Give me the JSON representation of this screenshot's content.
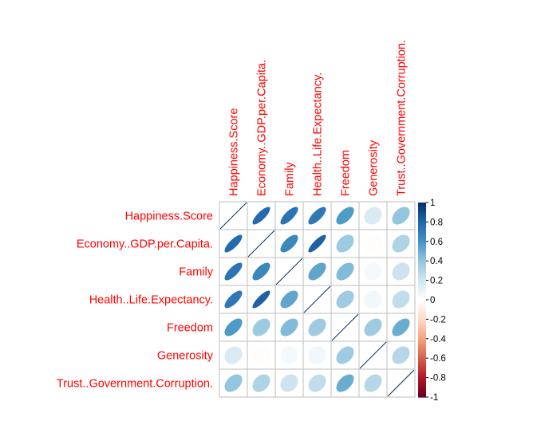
{
  "chart_data": {
    "type": "heatmap",
    "variables": [
      "Happiness.Score",
      "Economy..GDP.per.Capita.",
      "Family",
      "Health..Life.Expectancy.",
      "Freedom",
      "Generosity",
      "Trust..Government.Corruption."
    ],
    "matrix": [
      [
        1.0,
        0.78,
        0.74,
        0.72,
        0.57,
        0.16,
        0.4
      ],
      [
        0.78,
        1.0,
        0.65,
        0.82,
        0.37,
        -0.01,
        0.31
      ],
      [
        0.74,
        0.65,
        1.0,
        0.53,
        0.44,
        0.05,
        0.21
      ],
      [
        0.72,
        0.82,
        0.53,
        1.0,
        0.36,
        0.06,
        0.25
      ],
      [
        0.57,
        0.37,
        0.44,
        0.36,
        1.0,
        0.36,
        0.5
      ],
      [
        0.16,
        -0.01,
        0.05,
        0.06,
        0.36,
        1.0,
        0.29
      ],
      [
        0.4,
        0.31,
        0.21,
        0.25,
        0.5,
        0.29,
        1.0
      ]
    ],
    "colorbar": {
      "ticks": [
        "1",
        "0.8",
        "0.6",
        "0.4",
        "0.2",
        "0",
        "-0.2",
        "-0.4",
        "-0.6",
        "-0.8",
        "-1"
      ],
      "range": [
        -1,
        1
      ]
    },
    "colors": {
      "label": "#ff0000",
      "grid": "#bebebe",
      "scale_top": "#053061",
      "scale_bottom": "#67001f"
    }
  }
}
